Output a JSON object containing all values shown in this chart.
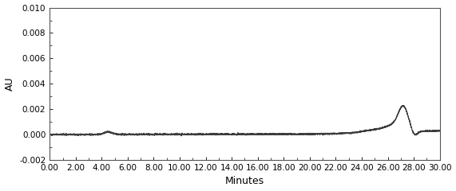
{
  "xlabel": "Minutes",
  "ylabel": "AU",
  "xlim": [
    0.0,
    30.0
  ],
  "ylim": [
    -0.002,
    0.01
  ],
  "xticks": [
    0.0,
    2.0,
    4.0,
    6.0,
    8.0,
    10.0,
    12.0,
    14.0,
    16.0,
    18.0,
    20.0,
    22.0,
    24.0,
    26.0,
    28.0,
    30.0
  ],
  "yticks": [
    -0.002,
    0.0,
    0.002,
    0.004,
    0.006,
    0.008,
    0.01
  ],
  "line_color": "#3c3c3c",
  "line_width": 0.8,
  "background_color": "#ffffff",
  "tick_label_fontsize": 7.5,
  "axis_label_fontsize": 9
}
